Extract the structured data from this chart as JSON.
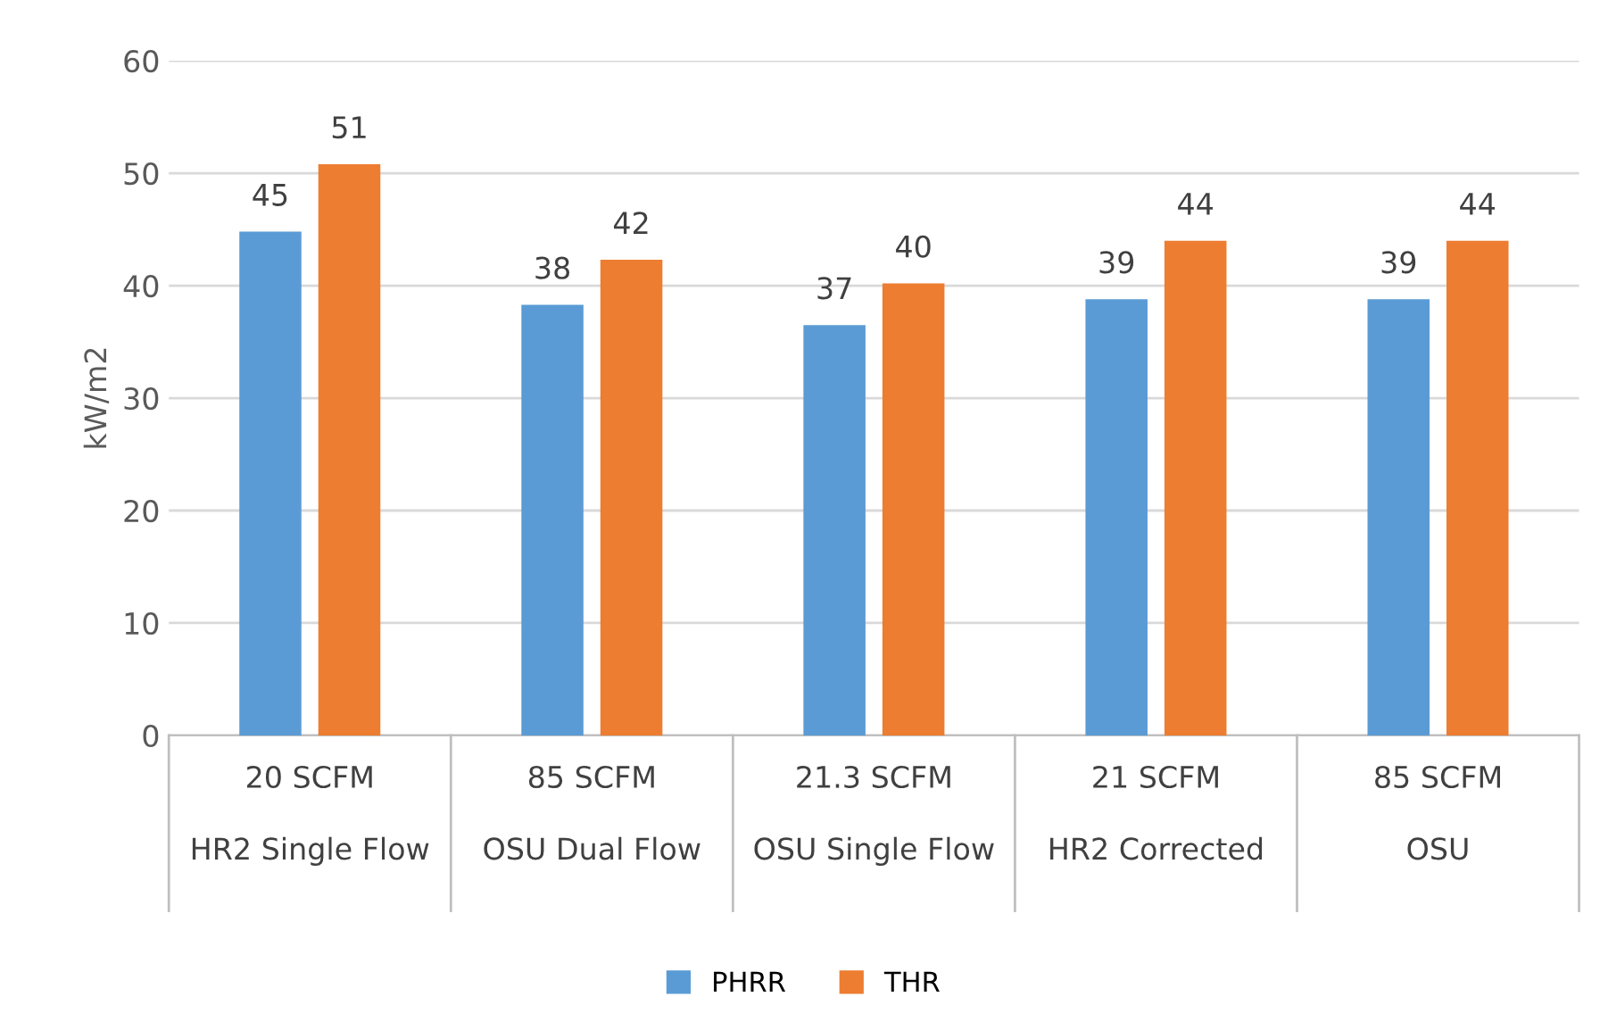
{
  "chart_data": {
    "type": "bar",
    "ylabel": "kW/m2",
    "categories": [
      "20 SCFM\nHR2 Single Flow",
      "85 SCFM\nOSU Dual Flow",
      "21.3 SCFM\nOSU Single Flow",
      "21 SCFM\nHR2 Corrected",
      "85 SCFM\nOSU"
    ],
    "series": [
      {
        "name": "PHRR",
        "color": "#5b9bd5",
        "values": [
          44.8,
          38.3,
          36.5,
          38.8,
          38.8
        ],
        "value_labels": [
          "45",
          "38",
          "37",
          "39",
          "39"
        ]
      },
      {
        "name": "THR",
        "color": "#ed7d31",
        "values": [
          50.8,
          42.3,
          40.2,
          44.0,
          44.0
        ],
        "value_labels": [
          "51",
          "42",
          "40",
          "44",
          "44"
        ]
      }
    ],
    "ylim": [
      0,
      60
    ],
    "yticks": [
      0,
      10,
      20,
      30,
      40,
      50,
      60
    ],
    "grid": "y",
    "legend": "bottom"
  }
}
